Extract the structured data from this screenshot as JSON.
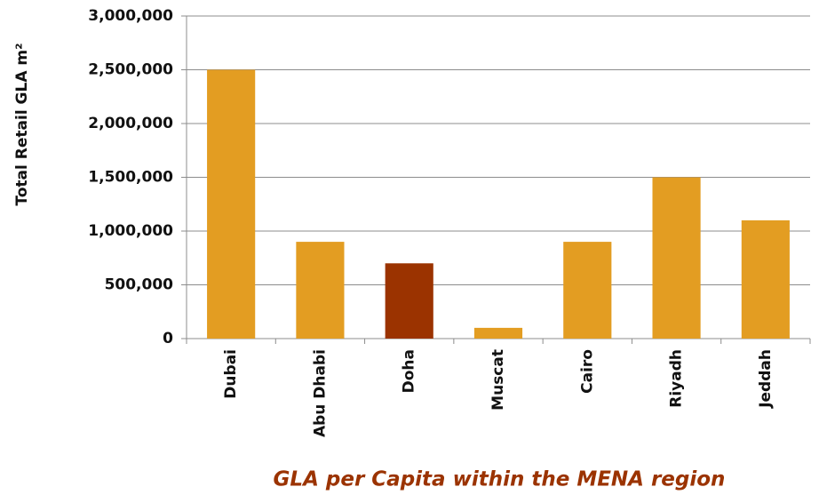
{
  "chart_data": {
    "type": "bar",
    "title": "GLA per Capita within the MENA region",
    "y_label": "Total Retail GLA m²",
    "categories": [
      "Dubai",
      "Abu Dhabi",
      "Doha",
      "Muscat",
      "Cairo",
      "Riyadh",
      "Jeddah"
    ],
    "values": [
      2500000,
      900000,
      700000,
      100000,
      900000,
      1500000,
      1100000
    ],
    "colors": [
      "#e39d22",
      "#e39d22",
      "#9b3300",
      "#e39d22",
      "#e39d22",
      "#e39d22",
      "#e39d22"
    ],
    "ylim": [
      0,
      3000000
    ],
    "yticks": [
      0,
      {
        "value": 500000,
        "label": "500,000"
      },
      {
        "value": 1000000,
        "label": "1,000,000"
      },
      {
        "value": 1500000,
        "label": "1,500,000"
      },
      {
        "value": 2000000,
        "label": "2,000,000"
      },
      {
        "value": 2500000,
        "label": "2,500,000"
      },
      {
        "value": 3000000,
        "label": "3,000,000"
      }
    ],
    "grid": true
  }
}
